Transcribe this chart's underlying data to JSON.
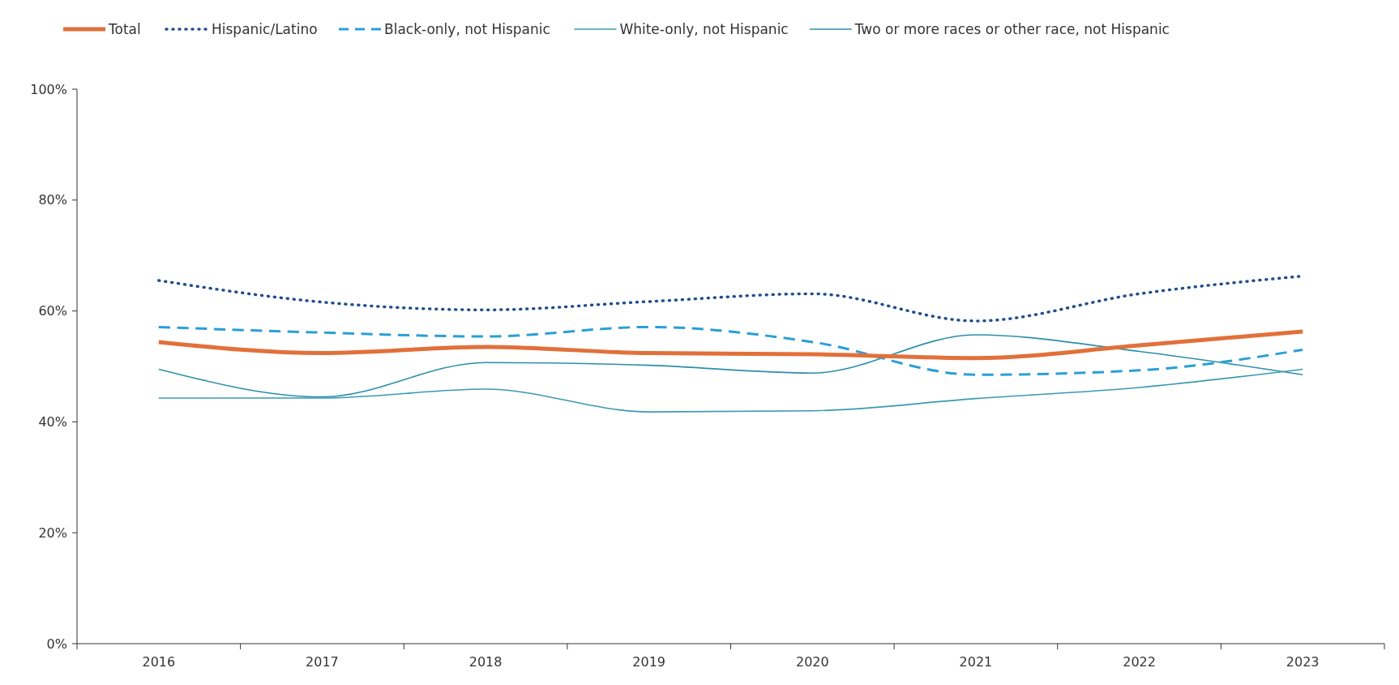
{
  "chart_data": {
    "type": "line",
    "categories": [
      "2016",
      "2017",
      "2018",
      "2019",
      "2020",
      "2021",
      "2022",
      "2023"
    ],
    "ylim": [
      0,
      100
    ],
    "yticks": [
      {
        "value": 0,
        "label": "0%"
      },
      {
        "value": 20,
        "label": "20%"
      },
      {
        "value": 40,
        "label": "40%"
      },
      {
        "value": 60,
        "label": "60%"
      },
      {
        "value": 80,
        "label": "80%"
      },
      {
        "value": 100,
        "label": "100%"
      }
    ],
    "grid": false,
    "legend": "top",
    "series": [
      {
        "name": "Total",
        "color": "#e2703a",
        "line_style": "solid",
        "values": [
          54.4,
          52.4,
          53.5,
          52.4,
          52.2,
          51.5,
          53.8,
          56.3
        ]
      },
      {
        "name": "Hispanic/Latino",
        "color": "#1f4e8c",
        "line_style": "dotted",
        "values": [
          65.5,
          61.6,
          60.2,
          61.7,
          63.1,
          58.2,
          63.1,
          66.3
        ]
      },
      {
        "name": "Black-only, not Hispanic",
        "color": "#2a9fd6",
        "line_style": "dashed",
        "values": [
          57.1,
          56.1,
          55.4,
          57.1,
          54.4,
          48.5,
          49.3,
          53.0
        ]
      },
      {
        "name": "White-only, not Hispanic",
        "color": "#3a9ab0",
        "line_style": "solid",
        "values": [
          44.3,
          44.3,
          45.9,
          41.8,
          42.0,
          44.2,
          46.2,
          49.5
        ]
      },
      {
        "name": "Two or more races or other race, not Hispanic",
        "color": "#2a8fa8",
        "line_style": "solid",
        "values": [
          49.5,
          44.5,
          50.7,
          50.2,
          48.8,
          55.7,
          52.7,
          48.5
        ]
      }
    ]
  }
}
